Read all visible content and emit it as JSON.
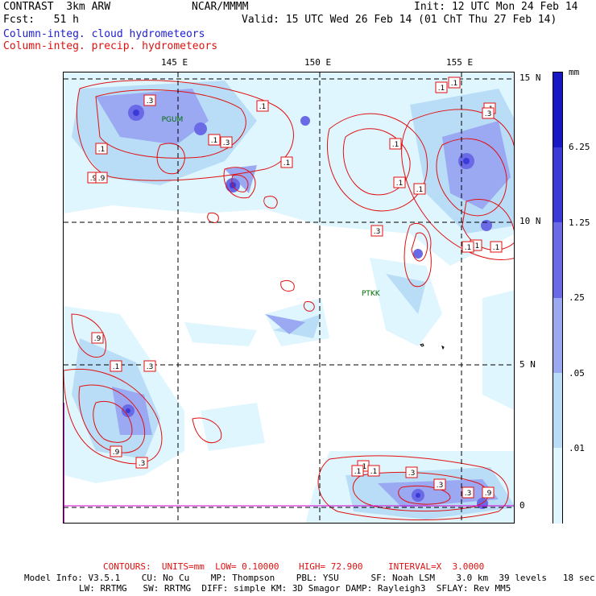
{
  "header": {
    "model": "CONTRAST  3km ARW",
    "center": "NCAR/MMMM",
    "init": "Init: 12 UTC Mon 24 Feb 14",
    "fcst": "Fcst:   51 h",
    "valid": "Valid: 15 UTC Wed 26 Feb 14 (01 ChT Thu 27 Feb 14)",
    "field1": "Column-integ. cloud hydrometeors",
    "field2": "Column-integ. precip. hydrometeors"
  },
  "axes": {
    "lon_labels": [
      "145 E",
      "150 E",
      "155 E"
    ],
    "lat_labels": [
      "15 N",
      "10 N",
      "5 N",
      "0"
    ]
  },
  "stations": [
    {
      "id": "PGUM",
      "lon": 144.8,
      "lat": 13.5
    },
    {
      "id": "PTKK",
      "lon": 151.8,
      "lat": 7.4
    }
  ],
  "colorbar": {
    "units": "mm",
    "levels": [
      "6.25",
      "1.25",
      ".25",
      ".05",
      ".01"
    ],
    "colors": [
      "#ffffff",
      "#dff6ff",
      "#b9ddf7",
      "#9aa9f2",
      "#6a6ae6",
      "#3a3ad8",
      "#1717c5"
    ]
  },
  "contour_labels": [
    ".1",
    ".1",
    ".1",
    ".1",
    ".9",
    ".3",
    ".3",
    ".1",
    ".1",
    ".1",
    ".1",
    ".9",
    ".1",
    ".3",
    ".1",
    ".1",
    ".3",
    ".3",
    ".1",
    ".9",
    ".1",
    ".1",
    ".9",
    ".3",
    ".1",
    ".1",
    ".3",
    ".3",
    ".3",
    ".9",
    ".1",
    ".9"
  ],
  "footer": {
    "contours_label": "CONTOURS:  UNITS=mm  LOW= 0.10000",
    "high_label": "HIGH= 72.900",
    "interval_label": "INTERVAL=X  3.0000",
    "line1": "Model Info: V3.5.1    CU: No Cu    MP: Thompson    PBL: YSU      SF: Noah LSM    3.0 km  39 levels   18 sec",
    "line2": "LW: RRTMG   SW: RRTMG  DIFF: simple KM: 3D Smagor DAMP: Rayleigh3  SFLAY: Rev MM5"
  }
}
